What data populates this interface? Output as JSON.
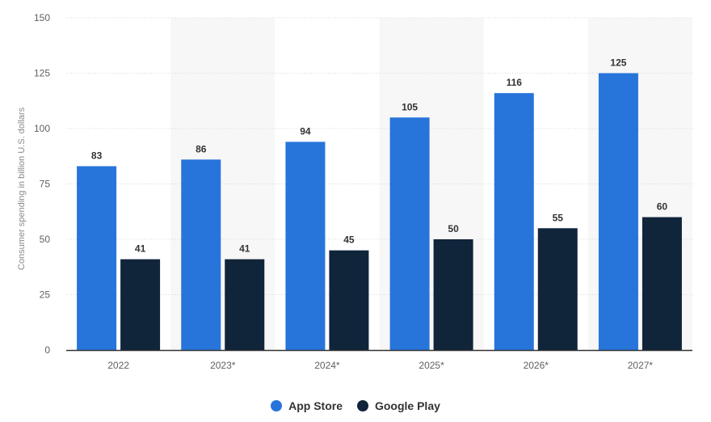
{
  "chart_data": {
    "type": "bar",
    "categories": [
      "2022",
      "2023*",
      "2024*",
      "2025*",
      "2026*",
      "2027*"
    ],
    "series": [
      {
        "name": "App Store",
        "color": "#2775db",
        "values": [
          83,
          86,
          94,
          105,
          116,
          125
        ]
      },
      {
        "name": "Google Play",
        "color": "#10243a",
        "values": [
          41,
          41,
          45,
          50,
          55,
          60
        ]
      }
    ],
    "ylabel": "Consumer spending in billion U.S. dollars",
    "ylim": [
      0,
      150
    ],
    "yticks": [
      0,
      25,
      50,
      75,
      100,
      125,
      150
    ],
    "grid": true,
    "legend_position": "bottom-center",
    "band_color": "#f7f7f7"
  }
}
